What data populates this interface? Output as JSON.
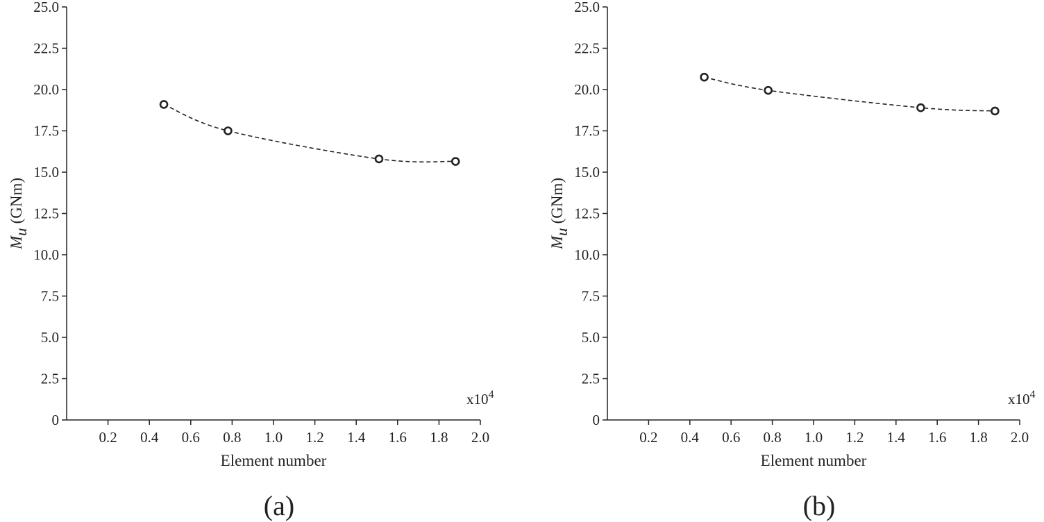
{
  "colors": {
    "ink": "#222222",
    "background": "#ffffff"
  },
  "chart_data": [
    {
      "type": "line",
      "panel_label": "(a)",
      "xlabel": "Element number",
      "ylabel_symbol": "M",
      "ylabel_subscript": "u",
      "ylabel_unit": "(GNm)",
      "x_multiplier_base": "x10",
      "x_multiplier_exponent": "4",
      "xlim": [
        0,
        2.0
      ],
      "ylim": [
        0,
        25.0
      ],
      "xticks": [
        "0.2",
        "0.4",
        "0.6",
        "0.8",
        "1.0",
        "1.2",
        "1.4",
        "1.6",
        "1.8",
        "2.0"
      ],
      "yticks": [
        "0",
        "2.5",
        "5.0",
        "7.5",
        "10.0",
        "12.5",
        "15.0",
        "17.5",
        "20.0",
        "22.5",
        "25.0"
      ],
      "line_style": "dashed",
      "marker": "circle",
      "series": [
        {
          "x": [
            0.47,
            0.78,
            1.51,
            1.88
          ],
          "y": [
            19.1,
            17.5,
            15.8,
            15.65
          ]
        }
      ]
    },
    {
      "type": "line",
      "panel_label": "(b)",
      "xlabel": "Element number",
      "ylabel_symbol": "M",
      "ylabel_subscript": "u",
      "ylabel_unit": "(GNm)",
      "x_multiplier_base": "x10",
      "x_multiplier_exponent": "4",
      "xlim": [
        0,
        2.0
      ],
      "ylim": [
        0,
        25.0
      ],
      "xticks": [
        "0.2",
        "0.4",
        "0.6",
        "0.8",
        "1.0",
        "1.2",
        "1.4",
        "1.6",
        "1.8",
        "2.0"
      ],
      "yticks": [
        "0",
        "2.5",
        "5.0",
        "7.5",
        "10.0",
        "12.5",
        "15.0",
        "17.5",
        "20.0",
        "22.5",
        "25.0"
      ],
      "line_style": "dashed",
      "marker": "circle",
      "series": [
        {
          "x": [
            0.47,
            0.78,
            1.52,
            1.88
          ],
          "y": [
            20.75,
            19.95,
            18.9,
            18.7
          ]
        }
      ]
    }
  ]
}
